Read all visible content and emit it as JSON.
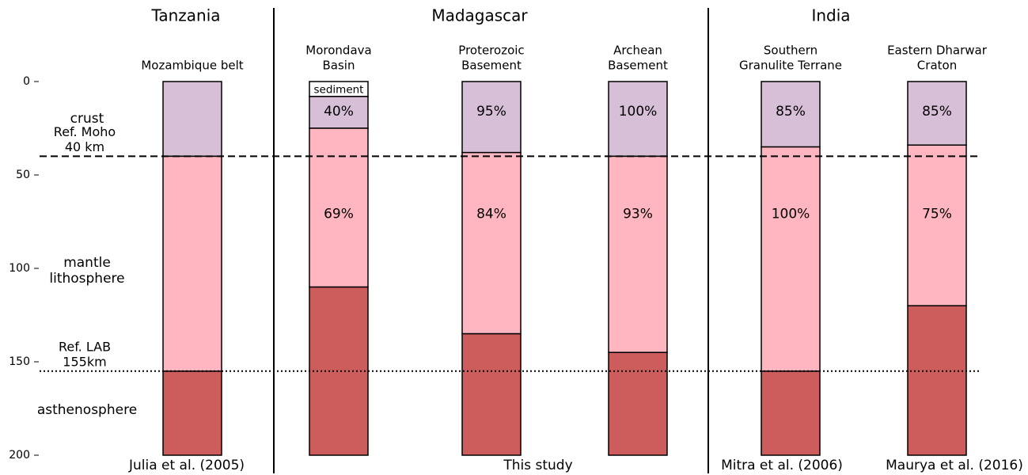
{
  "chart_data": {
    "type": "stacked_column",
    "regions": [
      "Tanzania",
      "Madagascar",
      "India"
    ],
    "categories": [
      [
        "Mozambique belt"
      ],
      [
        "Morondava",
        "Basin"
      ],
      [
        "Proterozoic",
        "Basement"
      ],
      [
        "Archean",
        "Basement"
      ],
      [
        "Southern",
        "Granulite Terrane"
      ],
      [
        "Eastern Dharwar",
        "Craton"
      ]
    ],
    "series": [
      {
        "name": "sediment",
        "color": "#ffffff",
        "values": [
          null,
          8,
          null,
          null,
          null,
          null
        ]
      },
      {
        "name": "crust",
        "color": "#d8bfd8",
        "values": [
          40,
          17,
          38,
          40,
          35,
          34
        ]
      },
      {
        "name": "mantle lithosphere",
        "color": "#ffb6c1",
        "values": [
          115,
          85,
          97,
          105,
          120,
          86
        ]
      },
      {
        "name": "asthenosphere",
        "color": "#cd5c5c",
        "values": [
          45,
          90,
          65,
          55,
          45,
          80
        ]
      }
    ],
    "crust_percent": [
      null,
      "40%",
      "95%",
      "100%",
      "85%",
      "85%"
    ],
    "mantle_percent": [
      null,
      "69%",
      "84%",
      "93%",
      "100%",
      "75%"
    ],
    "sources": [
      "Julia et al. (2005)",
      "This study",
      "Mitra et al. (2006)",
      "Maurya et al. (2016)"
    ],
    "ref_lines": [
      {
        "value": 40,
        "label": [
          "Ref. Moho",
          "40 km"
        ],
        "style": "dashed"
      },
      {
        "value": 155,
        "label": [
          "Ref. LAB",
          "155km"
        ],
        "style": "dotted"
      }
    ],
    "ylim": [
      0,
      200
    ],
    "yticks": [
      0,
      50,
      100,
      150,
      200
    ],
    "y_inverted": true
  }
}
